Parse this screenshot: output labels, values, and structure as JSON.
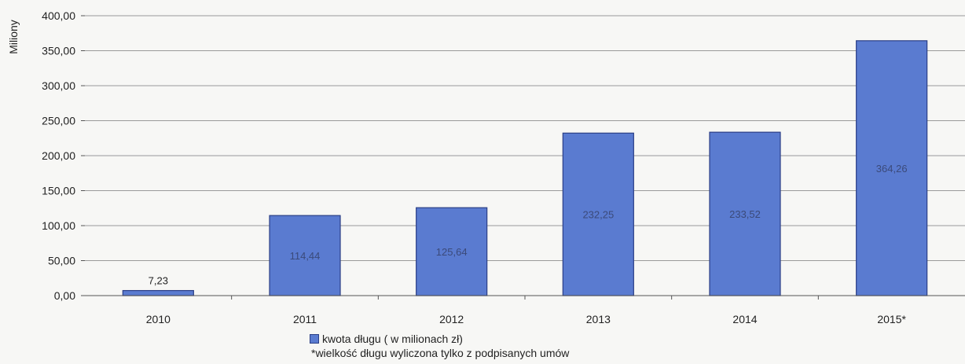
{
  "chart_data": {
    "type": "bar",
    "categories": [
      "2010",
      "2011",
      "2012",
      "2013",
      "2014",
      "2015*"
    ],
    "series": [
      {
        "name": "kwota długu ( w milionach zł)",
        "values": [
          7.23,
          114.44,
          125.64,
          232.25,
          233.52,
          364.26
        ],
        "labels": [
          "7,23",
          "114,44",
          "125,64",
          "232,25",
          "233,52",
          "364,26"
        ],
        "color": "#5a7bd0"
      }
    ],
    "ylabel": "Miliony",
    "ylim": [
      0,
      400
    ],
    "yticks": [
      0,
      50,
      100,
      150,
      200,
      250,
      300,
      350,
      400
    ],
    "ytick_labels": [
      "0,00",
      "50,00",
      "100,00",
      "150,00",
      "200,00",
      "250,00",
      "300,00",
      "350,00",
      "400,00"
    ],
    "grid": true,
    "legend_position": "bottom",
    "footnote": "*wielkość długu wyliczona tylko z podpisanych umów"
  }
}
